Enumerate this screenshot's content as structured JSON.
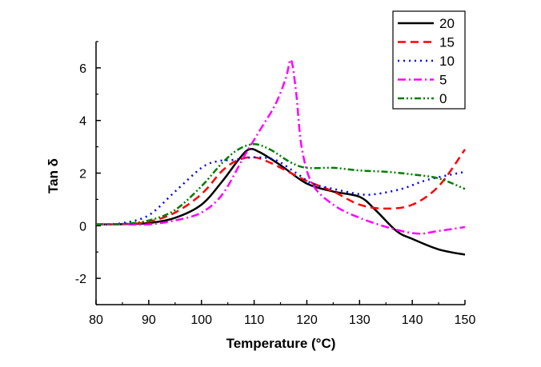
{
  "chart_data": {
    "type": "line",
    "title": "",
    "xlabel": "Temperature (°C)",
    "ylabel": "Tan δ",
    "xlim": [
      80,
      150
    ],
    "ylim": [
      -3,
      7
    ],
    "x_ticks": [
      80,
      90,
      100,
      110,
      120,
      130,
      140,
      150
    ],
    "y_ticks": [
      -2,
      0,
      2,
      4,
      6
    ],
    "grid": false,
    "legend_position": "top-right",
    "series": [
      {
        "name": "20",
        "color": "#000000",
        "dash": "solid",
        "points": [
          [
            80,
            0.05
          ],
          [
            85,
            0.06
          ],
          [
            90,
            0.1
          ],
          [
            95,
            0.3
          ],
          [
            100,
            0.8
          ],
          [
            104,
            1.7
          ],
          [
            107,
            2.5
          ],
          [
            109,
            2.9
          ],
          [
            111,
            2.8
          ],
          [
            115,
            2.3
          ],
          [
            120,
            1.6
          ],
          [
            125,
            1.3
          ],
          [
            130,
            1.1
          ],
          [
            133,
            0.6
          ],
          [
            137,
            -0.2
          ],
          [
            140,
            -0.5
          ],
          [
            145,
            -0.9
          ],
          [
            150,
            -1.1
          ]
        ]
      },
      {
        "name": "15",
        "color": "#ff0000",
        "dash": "dashed",
        "points": [
          [
            80,
            0.05
          ],
          [
            85,
            0.06
          ],
          [
            90,
            0.15
          ],
          [
            95,
            0.5
          ],
          [
            100,
            1.2
          ],
          [
            104,
            2.1
          ],
          [
            107,
            2.5
          ],
          [
            110,
            2.6
          ],
          [
            113,
            2.4
          ],
          [
            117,
            2.0
          ],
          [
            120,
            1.7
          ],
          [
            125,
            1.3
          ],
          [
            130,
            0.8
          ],
          [
            135,
            0.65
          ],
          [
            140,
            0.8
          ],
          [
            145,
            1.5
          ],
          [
            150,
            2.9
          ]
        ]
      },
      {
        "name": "10",
        "color": "#0000ff",
        "dash": "dotted",
        "points": [
          [
            80,
            0.05
          ],
          [
            85,
            0.1
          ],
          [
            90,
            0.4
          ],
          [
            95,
            1.3
          ],
          [
            100,
            2.2
          ],
          [
            103,
            2.45
          ],
          [
            106,
            2.5
          ],
          [
            110,
            2.6
          ],
          [
            114,
            2.5
          ],
          [
            118,
            2.0
          ],
          [
            121,
            1.6
          ],
          [
            125,
            1.4
          ],
          [
            130,
            1.2
          ],
          [
            133,
            1.2
          ],
          [
            138,
            1.4
          ],
          [
            143,
            1.75
          ],
          [
            150,
            2.05
          ]
        ]
      },
      {
        "name": "5",
        "color": "#ff00ff",
        "dash": "dashdot",
        "points": [
          [
            80,
            0.05
          ],
          [
            85,
            0.05
          ],
          [
            90,
            0.05
          ],
          [
            95,
            0.2
          ],
          [
            100,
            0.5
          ],
          [
            104,
            1.2
          ],
          [
            108,
            2.6
          ],
          [
            111,
            3.6
          ],
          [
            114,
            4.6
          ],
          [
            116,
            5.6
          ],
          [
            117,
            6.3
          ],
          [
            118,
            5.0
          ],
          [
            119,
            3.0
          ],
          [
            121,
            1.6
          ],
          [
            125,
            0.8
          ],
          [
            130,
            0.3
          ],
          [
            136,
            -0.1
          ],
          [
            141,
            -0.3
          ],
          [
            145,
            -0.2
          ],
          [
            150,
            -0.05
          ]
        ]
      },
      {
        "name": "0",
        "color": "#008000",
        "dash": "dashdotdot",
        "points": [
          [
            80,
            0.05
          ],
          [
            85,
            0.07
          ],
          [
            90,
            0.2
          ],
          [
            95,
            0.6
          ],
          [
            100,
            1.5
          ],
          [
            104,
            2.4
          ],
          [
            107,
            2.9
          ],
          [
            110,
            3.1
          ],
          [
            113,
            2.9
          ],
          [
            117,
            2.4
          ],
          [
            120,
            2.2
          ],
          [
            125,
            2.2
          ],
          [
            130,
            2.1
          ],
          [
            135,
            2.05
          ],
          [
            140,
            1.95
          ],
          [
            145,
            1.8
          ],
          [
            150,
            1.4
          ]
        ]
      }
    ]
  }
}
